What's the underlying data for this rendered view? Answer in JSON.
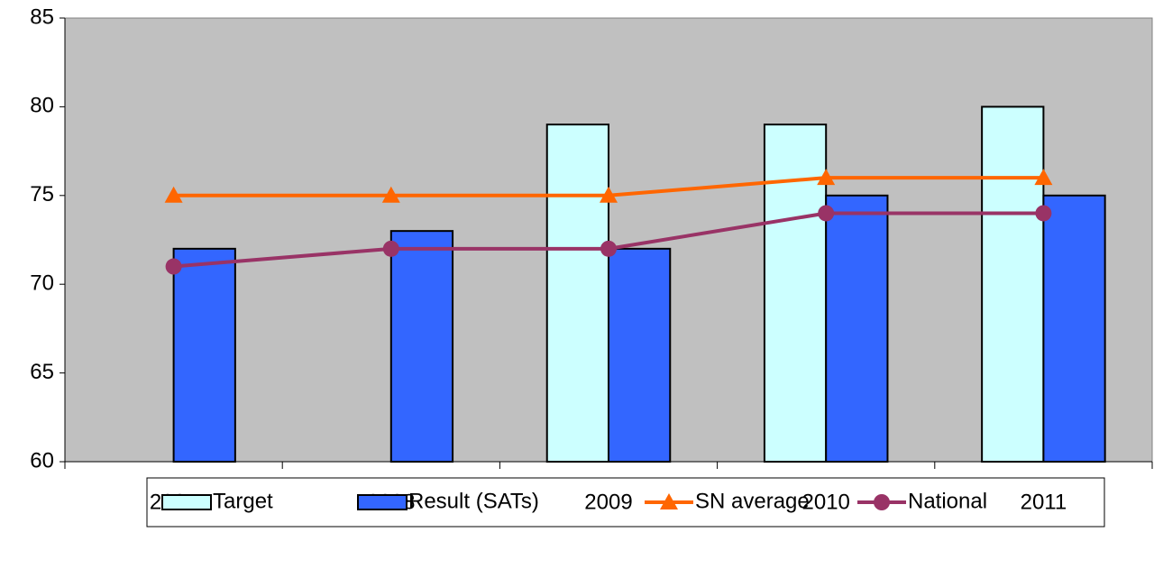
{
  "chart_data": {
    "type": "bar",
    "categories": [
      "2007",
      "2008",
      "2009",
      "2010",
      "2011"
    ],
    "series": [
      {
        "name": "Target",
        "type": "bar",
        "color": "#ccffff",
        "values": [
          null,
          null,
          79,
          79,
          80
        ]
      },
      {
        "name": "Result (SATs)",
        "type": "bar",
        "color": "#3366ff",
        "values": [
          72,
          73,
          72,
          75,
          75
        ]
      },
      {
        "name": "SN average",
        "type": "line",
        "marker": "triangle",
        "color": "#ff6600",
        "values": [
          75,
          75,
          75,
          76,
          76
        ]
      },
      {
        "name": "National",
        "type": "line",
        "marker": "circle",
        "color": "#993366",
        "values": [
          71,
          72,
          72,
          74,
          74
        ]
      }
    ],
    "ylim": [
      60,
      85
    ],
    "yticks": [
      60,
      65,
      70,
      75,
      80,
      85
    ],
    "grid": false,
    "legend": "bottom"
  }
}
